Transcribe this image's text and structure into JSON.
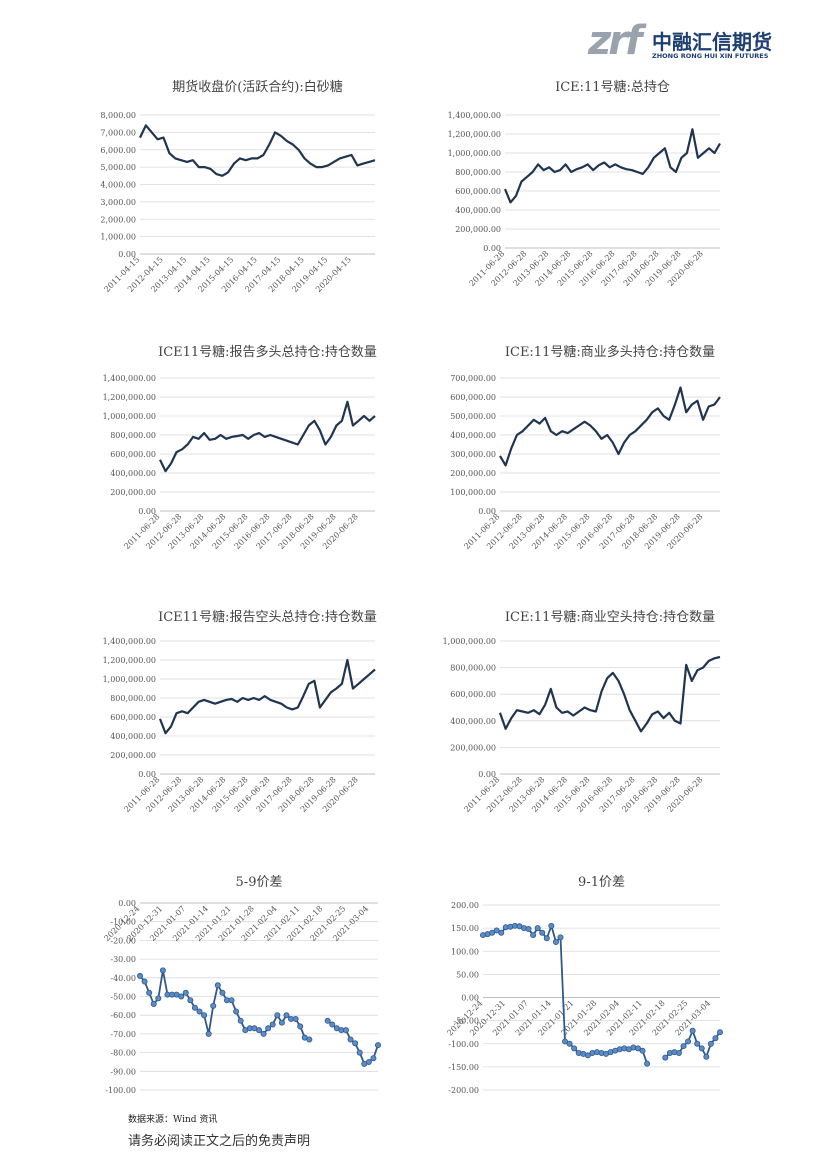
{
  "header": {
    "logo_mark": "zrf",
    "company": "中融汇信期货",
    "company_en": "ZHONG RONG HUI XIN FUTURES"
  },
  "chart_data": [
    {
      "type": "line",
      "title": "期货收盘价(活跃合约):白砂糖",
      "color": "#1f3550",
      "grid": true,
      "categories": [
        "2011-04-15",
        null,
        null,
        null,
        "2012-04-15",
        null,
        null,
        null,
        "2013-04-15",
        null,
        null,
        null,
        "2014-04-15",
        null,
        null,
        null,
        "2015-04-15",
        null,
        null,
        null,
        "2016-04-15",
        null,
        null,
        null,
        "2017-04-15",
        null,
        null,
        null,
        "2018-04-15",
        null,
        null,
        null,
        "2019-04-15",
        null,
        null,
        null,
        "2020-04-15",
        null,
        null,
        null,
        null
      ],
      "values": [
        6700,
        7400,
        7000,
        6600,
        6700,
        5800,
        5500,
        5400,
        5300,
        5400,
        5000,
        5000,
        4900,
        4600,
        4500,
        4700,
        5200,
        5500,
        5400,
        5500,
        5500,
        5700,
        6300,
        7000,
        6800,
        6500,
        6300,
        6000,
        5500,
        5200,
        5000,
        5000,
        5100,
        5300,
        5500,
        5600,
        5700,
        5100,
        5200,
        5300,
        5400
      ],
      "ylim": [
        0,
        8000
      ],
      "yticks": [
        {
          "value": 0,
          "label": "0.00"
        },
        {
          "value": 1000,
          "label": "1,000.00"
        },
        {
          "value": 2000,
          "label": "2,000.00"
        },
        {
          "value": 3000,
          "label": "3,000.00"
        },
        {
          "value": 4000,
          "label": "4,000.00"
        },
        {
          "value": 5000,
          "label": "5,000.00"
        },
        {
          "value": 6000,
          "label": "6,000.00"
        },
        {
          "value": 7000,
          "label": "7,000.00"
        },
        {
          "value": 8000,
          "label": "8,000.00"
        }
      ]
    },
    {
      "type": "line",
      "title": "ICE:11号糖:总持仓",
      "color": "#1f3550",
      "grid": true,
      "categories": [
        "2011-06-28",
        null,
        null,
        null,
        "2012-06-28",
        null,
        null,
        null,
        "2013-06-28",
        null,
        null,
        null,
        "2014-06-28",
        null,
        null,
        null,
        "2015-06-28",
        null,
        null,
        null,
        "2016-06-28",
        null,
        null,
        null,
        "2017-06-28",
        null,
        null,
        null,
        "2018-06-28",
        null,
        null,
        null,
        "2019-06-28",
        null,
        null,
        null,
        "2020-06-28",
        null,
        null,
        null
      ],
      "values": [
        620000,
        480000,
        550000,
        700000,
        750000,
        800000,
        880000,
        820000,
        850000,
        800000,
        820000,
        880000,
        800000,
        830000,
        850000,
        880000,
        820000,
        870000,
        900000,
        850000,
        880000,
        850000,
        830000,
        820000,
        800000,
        780000,
        850000,
        950000,
        1000000,
        1050000,
        850000,
        800000,
        950000,
        1000000,
        1250000,
        950000,
        1000000,
        1050000,
        1000000,
        1100000
      ],
      "ylim": [
        0,
        1400000
      ],
      "yticks": [
        {
          "value": 0,
          "label": "0.00"
        },
        {
          "value": 200000,
          "label": "200,000.00"
        },
        {
          "value": 400000,
          "label": "400,000.00"
        },
        {
          "value": 600000,
          "label": "600,000.00"
        },
        {
          "value": 800000,
          "label": "800,000.00"
        },
        {
          "value": 1000000,
          "label": "1,000,000.00"
        },
        {
          "value": 1200000,
          "label": "1,200,000.00"
        },
        {
          "value": 1400000,
          "label": "1,400,000.00"
        }
      ]
    },
    {
      "type": "line",
      "title": "ICE11号糖:报告多头总持仓:持仓数量",
      "color": "#1f3550",
      "grid": true,
      "categories": [
        "2011-06-28",
        null,
        null,
        null,
        "2012-06-28",
        null,
        null,
        null,
        "2013-06-28",
        null,
        null,
        null,
        "2014-06-28",
        null,
        null,
        null,
        "2015-06-28",
        null,
        null,
        null,
        "2016-06-28",
        null,
        null,
        null,
        "2017-06-28",
        null,
        null,
        null,
        "2018-06-28",
        null,
        null,
        null,
        "2019-06-28",
        null,
        null,
        null,
        "2020-06-28",
        null,
        null,
        null
      ],
      "values": [
        540000,
        420000,
        500000,
        620000,
        650000,
        700000,
        780000,
        760000,
        820000,
        750000,
        760000,
        800000,
        760000,
        780000,
        790000,
        800000,
        760000,
        800000,
        820000,
        780000,
        800000,
        780000,
        760000,
        740000,
        720000,
        700000,
        800000,
        900000,
        950000,
        850000,
        700000,
        780000,
        900000,
        950000,
        1150000,
        900000,
        950000,
        1000000,
        950000,
        1000000
      ],
      "ylim": [
        0,
        1400000
      ],
      "yticks": [
        {
          "value": 0,
          "label": "0.00"
        },
        {
          "value": 200000,
          "label": "200,000.00"
        },
        {
          "value": 400000,
          "label": "400,000.00"
        },
        {
          "value": 600000,
          "label": "600,000.00"
        },
        {
          "value": 800000,
          "label": "800,000.00"
        },
        {
          "value": 1000000,
          "label": "1,000,000.00"
        },
        {
          "value": 1200000,
          "label": "1,200,000.00"
        },
        {
          "value": 1400000,
          "label": "1,400,000.00"
        }
      ]
    },
    {
      "type": "line",
      "title": "ICE:11号糖:商业多头持仓:持仓数量",
      "color": "#1f3550",
      "grid": true,
      "categories": [
        "2011-06-28",
        null,
        null,
        null,
        "2012-06-28",
        null,
        null,
        null,
        "2013-06-28",
        null,
        null,
        null,
        "2014-06-28",
        null,
        null,
        null,
        "2015-06-28",
        null,
        null,
        null,
        "2016-06-28",
        null,
        null,
        null,
        "2017-06-28",
        null,
        null,
        null,
        "2018-06-28",
        null,
        null,
        null,
        "2019-06-28",
        null,
        null,
        null,
        "2020-06-28",
        null,
        null,
        null
      ],
      "values": [
        290000,
        240000,
        330000,
        400000,
        420000,
        450000,
        480000,
        460000,
        490000,
        420000,
        400000,
        420000,
        410000,
        430000,
        450000,
        470000,
        450000,
        420000,
        380000,
        400000,
        360000,
        300000,
        360000,
        400000,
        420000,
        450000,
        480000,
        520000,
        540000,
        500000,
        480000,
        560000,
        650000,
        520000,
        560000,
        580000,
        480000,
        550000,
        560000,
        600000
      ],
      "ylim": [
        0,
        700000
      ],
      "yticks": [
        {
          "value": 0,
          "label": "0.00"
        },
        {
          "value": 100000,
          "label": "100,000.00"
        },
        {
          "value": 200000,
          "label": "200,000.00"
        },
        {
          "value": 300000,
          "label": "300,000.00"
        },
        {
          "value": 400000,
          "label": "400,000.00"
        },
        {
          "value": 500000,
          "label": "500,000.00"
        },
        {
          "value": 600000,
          "label": "600,000.00"
        },
        {
          "value": 700000,
          "label": "700,000.00"
        }
      ]
    },
    {
      "type": "line",
      "title": "ICE11号糖:报告空头总持仓:持仓数量",
      "color": "#1f3550",
      "grid": true,
      "categories": [
        "2011-06-28",
        null,
        null,
        null,
        "2012-06-28",
        null,
        null,
        null,
        "2013-06-28",
        null,
        null,
        null,
        "2014-06-28",
        null,
        null,
        null,
        "2015-06-28",
        null,
        null,
        null,
        "2016-06-28",
        null,
        null,
        null,
        "2017-06-28",
        null,
        null,
        null,
        "2018-06-28",
        null,
        null,
        null,
        "2019-06-28",
        null,
        null,
        null,
        "2020-06-28",
        null,
        null,
        null
      ],
      "values": [
        580000,
        430000,
        500000,
        640000,
        660000,
        640000,
        700000,
        760000,
        780000,
        760000,
        740000,
        760000,
        780000,
        790000,
        760000,
        800000,
        780000,
        800000,
        780000,
        820000,
        780000,
        760000,
        740000,
        700000,
        680000,
        700000,
        820000,
        950000,
        980000,
        700000,
        780000,
        860000,
        900000,
        950000,
        1200000,
        900000,
        950000,
        1000000,
        1050000,
        1100000
      ],
      "ylim": [
        0,
        1400000
      ],
      "yticks": [
        {
          "value": 0,
          "label": "0.00"
        },
        {
          "value": 200000,
          "label": "200,000.00"
        },
        {
          "value": 400000,
          "label": "400,000.00"
        },
        {
          "value": 600000,
          "label": "600,000.00"
        },
        {
          "value": 800000,
          "label": "800,000.00"
        },
        {
          "value": 1000000,
          "label": "1,000,000.00"
        },
        {
          "value": 1200000,
          "label": "1,200,000.00"
        },
        {
          "value": 1400000,
          "label": "1,400,000.00"
        }
      ]
    },
    {
      "type": "line",
      "title": "ICE:11号糖:商业空头持仓:持仓数量",
      "color": "#1f3550",
      "grid": true,
      "categories": [
        "2011-06-28",
        null,
        null,
        null,
        "2012-06-28",
        null,
        null,
        null,
        "2013-06-28",
        null,
        null,
        null,
        "2014-06-28",
        null,
        null,
        null,
        "2015-06-28",
        null,
        null,
        null,
        "2016-06-28",
        null,
        null,
        null,
        "2017-06-28",
        null,
        null,
        null,
        "2018-06-28",
        null,
        null,
        null,
        "2019-06-28",
        null,
        null,
        null,
        "2020-06-28",
        null,
        null,
        null
      ],
      "values": [
        460000,
        340000,
        420000,
        480000,
        470000,
        460000,
        480000,
        450000,
        520000,
        640000,
        500000,
        460000,
        470000,
        440000,
        470000,
        500000,
        480000,
        470000,
        620000,
        720000,
        760000,
        700000,
        600000,
        480000,
        400000,
        320000,
        380000,
        450000,
        470000,
        420000,
        460000,
        400000,
        380000,
        820000,
        700000,
        780000,
        800000,
        850000,
        870000,
        880000
      ],
      "ylim": [
        0,
        1000000
      ],
      "yticks": [
        {
          "value": 0,
          "label": "0.00"
        },
        {
          "value": 200000,
          "label": "200,000.00"
        },
        {
          "value": 400000,
          "label": "400,000.00"
        },
        {
          "value": 600000,
          "label": "600,000.00"
        },
        {
          "value": 800000,
          "label": "800,000.00"
        },
        {
          "value": 1000000,
          "label": "1,000,000.00"
        }
      ]
    },
    {
      "type": "line",
      "title": "5-9价差",
      "color": "#2f5a8a",
      "marker_color": "#5b8cc7",
      "markers": true,
      "grid": true,
      "categories": [
        "2020-12-24",
        null,
        null,
        null,
        null,
        "2020-12-31",
        null,
        null,
        null,
        null,
        "2021-01-07",
        null,
        null,
        null,
        null,
        "2021-01-14",
        null,
        null,
        null,
        null,
        "2021-01-21",
        null,
        null,
        null,
        null,
        "2021-01-28",
        null,
        null,
        null,
        null,
        "2021-02-04",
        null,
        null,
        null,
        null,
        "2021-02-11",
        null,
        null,
        null,
        null,
        "2021-02-18",
        null,
        null,
        null,
        null,
        "2021-02-25",
        null,
        null,
        null,
        null,
        "2021-03-04",
        null,
        null
      ],
      "values": [
        -39,
        -42,
        -48,
        -54,
        -51,
        -36,
        -49,
        -49,
        -49,
        -50,
        -48,
        -52,
        -56,
        -58,
        -60,
        -70,
        -55,
        -44,
        -48,
        -52,
        -52,
        -58,
        -63,
        -68,
        -67,
        -67,
        -68,
        -70,
        -67,
        -65,
        -60,
        -64,
        -60,
        -62,
        -62,
        -66,
        -72,
        -73,
        null,
        null,
        null,
        -63,
        -65,
        -67,
        -68,
        -68,
        -73,
        -75,
        -80,
        -86,
        -85,
        -83,
        -76
      ],
      "ylim": [
        -100,
        0
      ],
      "yticks": [
        {
          "value": 0,
          "label": "0.00"
        },
        {
          "value": -10,
          "label": "-10.00"
        },
        {
          "value": -20,
          "label": "-20.00"
        },
        {
          "value": -30,
          "label": "-30.00"
        },
        {
          "value": -40,
          "label": "-40.00"
        },
        {
          "value": -50,
          "label": "-50.00"
        },
        {
          "value": -60,
          "label": "-60.00"
        },
        {
          "value": -70,
          "label": "-70.00"
        },
        {
          "value": -80,
          "label": "-80.00"
        },
        {
          "value": -90,
          "label": "-90.00"
        },
        {
          "value": -100,
          "label": "-100.00"
        }
      ]
    },
    {
      "type": "line",
      "title": "9-1价差",
      "color": "#2f5a8a",
      "marker_color": "#5b8cc7",
      "markers": true,
      "grid": true,
      "categories": [
        "2020-12-24",
        null,
        null,
        null,
        null,
        "2020-12-31",
        null,
        null,
        null,
        null,
        "2021-01-07",
        null,
        null,
        null,
        null,
        "2021-01-14",
        null,
        null,
        null,
        null,
        "2021-01-21",
        null,
        null,
        null,
        null,
        "2021-01-28",
        null,
        null,
        null,
        null,
        "2021-02-04",
        null,
        null,
        null,
        null,
        "2021-02-11",
        null,
        null,
        null,
        null,
        "2021-02-18",
        null,
        null,
        null,
        null,
        "2021-02-25",
        null,
        null,
        null,
        null,
        "2021-03-04",
        null,
        null
      ],
      "values": [
        135,
        137,
        140,
        145,
        140,
        152,
        153,
        155,
        154,
        150,
        148,
        135,
        150,
        140,
        128,
        155,
        120,
        130,
        -95,
        -100,
        -110,
        -120,
        -122,
        -125,
        -120,
        -118,
        -120,
        -122,
        -118,
        -115,
        -112,
        -110,
        -112,
        -108,
        -110,
        -115,
        -143,
        null,
        null,
        null,
        -130,
        -120,
        -118,
        -120,
        -105,
        -95,
        -72,
        -100,
        -110,
        -128,
        -100,
        -88,
        -75
      ],
      "ylim": [
        -200,
        200
      ],
      "yticks": [
        {
          "value": 200,
          "label": "200.00"
        },
        {
          "value": 150,
          "label": "150.00"
        },
        {
          "value": 100,
          "label": "100.00"
        },
        {
          "value": 50,
          "label": "50.00"
        },
        {
          "value": 0,
          "label": "0.00"
        },
        {
          "value": -50,
          "label": "-50.00"
        },
        {
          "value": -100,
          "label": "-100.00"
        },
        {
          "value": -150,
          "label": "-150.00"
        },
        {
          "value": -200,
          "label": "-200.00"
        }
      ]
    }
  ],
  "footer": {
    "source": "数据来源：Wind 资讯",
    "disclaimer": "请务必阅读正文之后的免责声明"
  }
}
